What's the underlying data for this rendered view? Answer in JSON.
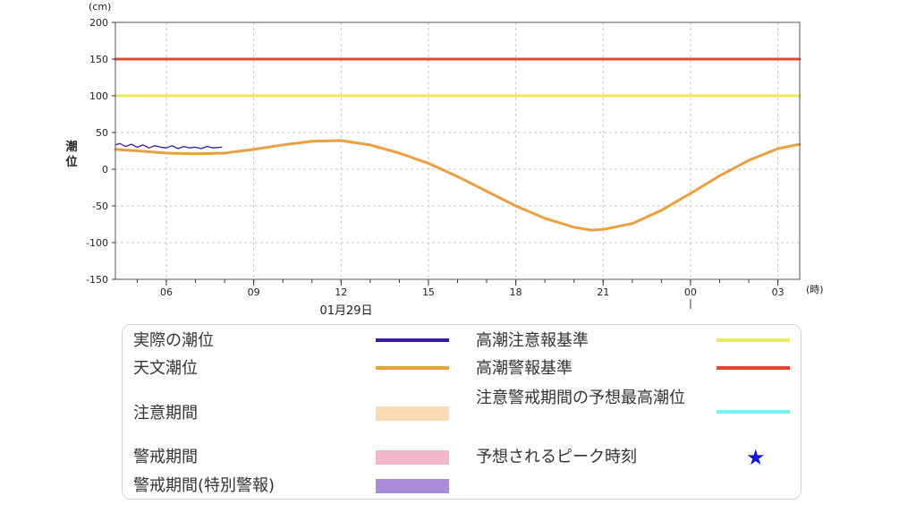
{
  "chart_data": {
    "type": "line",
    "yunit": "(cm)",
    "ylabel": "潮位",
    "xunit": "(時)",
    "date_label": "01月29日",
    "ylim": [
      -150,
      200
    ],
    "yticks": [
      200,
      150,
      100,
      50,
      0,
      -50,
      -100,
      -150
    ],
    "xlim_hours": [
      4.25,
      27.75
    ],
    "xticks": [
      {
        "hour": 6,
        "label": "06"
      },
      {
        "hour": 9,
        "label": "09"
      },
      {
        "hour": 12,
        "label": "12"
      },
      {
        "hour": 15,
        "label": "15"
      },
      {
        "hour": 18,
        "label": "18"
      },
      {
        "hour": 21,
        "label": "21"
      },
      {
        "hour": 24,
        "label": "00"
      },
      {
        "hour": 27,
        "label": "03"
      }
    ],
    "date_change_hour": 24,
    "grid": true,
    "series": [
      {
        "name": "実際の潮位",
        "color": "#3a1a9e",
        "x": [
          4.25,
          4.4,
          4.6,
          4.8,
          5.0,
          5.2,
          5.4,
          5.6,
          5.8,
          6.0,
          6.2,
          6.4,
          6.6,
          6.8,
          7.0,
          7.2,
          7.4,
          7.6,
          7.9
        ],
        "y": [
          33,
          35,
          31,
          34,
          30,
          33,
          29,
          32,
          30,
          29,
          32,
          28,
          31,
          29,
          30,
          28,
          31,
          29,
          30
        ]
      },
      {
        "name": "天文潮位",
        "color": "#e8a040",
        "x": [
          4.25,
          5,
          6,
          7,
          8,
          9,
          10,
          11,
          12,
          13,
          14,
          15,
          16,
          17,
          18,
          19,
          20,
          20.6,
          21,
          22,
          23,
          24,
          25,
          26,
          27,
          27.75
        ],
        "y": [
          27,
          25,
          22,
          21,
          22,
          27,
          33,
          38,
          39,
          33,
          22,
          8,
          -10,
          -30,
          -50,
          -67,
          -79,
          -83,
          -82,
          -74,
          -56,
          -33,
          -9,
          12,
          28,
          34
        ]
      },
      {
        "name": "高潮注意報基準",
        "color": "#f0e85a",
        "x": [
          4.25,
          27.75
        ],
        "y": [
          100,
          100
        ]
      },
      {
        "name": "高潮警報基準",
        "color": "#e04a2c",
        "x": [
          4.25,
          27.75
        ],
        "y": [
          150,
          150
        ]
      }
    ]
  },
  "legend": {
    "items": [
      {
        "label": "実際の潮位",
        "color": "#3a1a9e"
      },
      {
        "label": "天文潮位",
        "color": "#e8a040"
      },
      {
        "label": "注意期間",
        "color": "#f7dcb6"
      },
      {
        "label": "警戒期間",
        "color": "#f4b6cc"
      },
      {
        "label": "警戒期間(特別警報)",
        "color": "#a98cd8"
      },
      {
        "label": "高潮注意報基準",
        "color": "#f0e85a"
      },
      {
        "label": "高潮警報基準",
        "color": "#e04a2c"
      },
      {
        "label": "注意警戒期間の予想最高潮位",
        "color": "#7cf0f2"
      },
      {
        "label": "予想されるピーク時刻",
        "color": "#1515d8"
      }
    ]
  }
}
